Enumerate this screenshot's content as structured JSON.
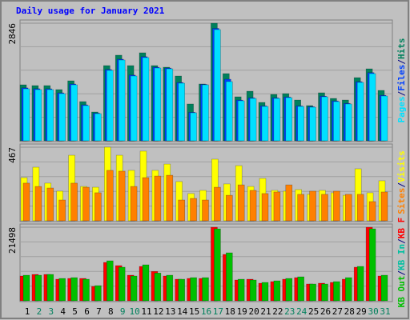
{
  "chart_data": [
    {
      "type": "bar",
      "title": "Daily usage for January 2021",
      "legend_separator": "/",
      "ylim": [
        0,
        2846
      ],
      "yticks": [
        2846
      ],
      "series": [
        {
          "name": "Hits",
          "color": "#00805c",
          "values": [
            1355,
            1336,
            1336,
            1239,
            1452,
            949,
            697,
            1820,
            2072,
            1820,
            2130,
            1820,
            1781,
            1568,
            891,
            1375,
            2846,
            1626,
            1065,
            1200,
            929,
            1123,
            1142,
            987,
            852,
            1162,
            1026,
            987,
            1529,
            1742,
            1220
          ]
        },
        {
          "name": "Files",
          "color": "#0040ff",
          "values": [
            1280,
            1260,
            1258,
            1160,
            1375,
            870,
            670,
            1725,
            1975,
            1590,
            2035,
            1780,
            1760,
            1410,
            690,
            1365,
            2720,
            1490,
            985,
            1040,
            845,
            1040,
            1060,
            845,
            825,
            1080,
            965,
            905,
            1430,
            1650,
            1100
          ]
        },
        {
          "name": "Pages",
          "color": "#00e0ff",
          "values": [
            1258,
            1239,
            1239,
            1142,
            1355,
            852,
            658,
            1704,
            1955,
            1568,
            2014,
            1762,
            1742,
            1394,
            678,
            1355,
            2691,
            1433,
            968,
            1026,
            832,
            1026,
            1045,
            832,
            813,
            1065,
            949,
            891,
            1413,
            1626,
            1084
          ]
        }
      ]
    },
    {
      "type": "bar",
      "ylim": [
        0,
        467
      ],
      "yticks": [
        467
      ],
      "series": [
        {
          "name": "Visits",
          "color": "#ffff00",
          "values": [
            274,
            340,
            239,
            188,
            416,
            218,
            213,
            467,
            416,
            320,
            442,
            320,
            360,
            249,
            173,
            193,
            391,
            234,
            350,
            218,
            269,
            193,
            188,
            198,
            168,
            193,
            178,
            162,
            330,
            178,
            254
          ]
        },
        {
          "name": "Sites",
          "color": "#ff8000",
          "values": [
            239,
            218,
            208,
            132,
            239,
            213,
            178,
            320,
            315,
            218,
            274,
            284,
            289,
            132,
            142,
            132,
            213,
            162,
            228,
            193,
            173,
            183,
            228,
            168,
            188,
            168,
            188,
            168,
            168,
            122,
            183
          ]
        }
      ]
    },
    {
      "type": "bar",
      "ylim": [
        0,
        21498
      ],
      "yticks": [
        21498
      ],
      "categories": [
        "1",
        "2",
        "3",
        "4",
        "5",
        "6",
        "7",
        "8",
        "9",
        "10",
        "11",
        "12",
        "13",
        "14",
        "15",
        "16",
        "17",
        "18",
        "19",
        "20",
        "21",
        "22",
        "23",
        "24",
        "25",
        "26",
        "27",
        "28",
        "29",
        "30",
        "31"
      ],
      "category_colors": [
        "#000000",
        "#00805c",
        "#00805c",
        "#000000",
        "#000000",
        "#000000",
        "#000000",
        "#000000",
        "#00805c",
        "#00805c",
        "#000000",
        "#000000",
        "#000000",
        "#000000",
        "#000000",
        "#00805c",
        "#00805c",
        "#000000",
        "#000000",
        "#000000",
        "#000000",
        "#000000",
        "#00805c",
        "#00805c",
        "#000000",
        "#000000",
        "#000000",
        "#000000",
        "#000000",
        "#00805c",
        "#00805c"
      ],
      "series": [
        {
          "name": "KB F",
          "color": "#ff0000",
          "values": [
            7244,
            7711,
            7711,
            6309,
            6542,
            6542,
            4206,
            11218,
            10283,
            7478,
            10049,
            8581,
            7244,
            6309,
            6542,
            6542,
            21498,
            13555,
            6076,
            6309,
            5141,
            5608,
            6309,
            6776,
            4908,
            5141,
            5375,
            6309,
            9815,
            21498,
            7244
          ]
        },
        {
          "name": "KB In",
          "color": "#00c0a0",
          "values": [
            0,
            0,
            0,
            0,
            0,
            0,
            0,
            0,
            0,
            0,
            0,
            0,
            0,
            0,
            0,
            0,
            0,
            0,
            0,
            0,
            0,
            0,
            0,
            0,
            0,
            0,
            0,
            0,
            0,
            0,
            0
          ]
        },
        {
          "name": "KB Out",
          "color": "#00c000",
          "values": [
            7478,
            7478,
            7711,
            6542,
            6776,
            6309,
            4440,
            11685,
            9815,
            7244,
            10516,
            8114,
            7478,
            6309,
            6776,
            6776,
            21030,
            14022,
            6309,
            6076,
            5374,
            5841,
            6542,
            7010,
            4908,
            4908,
            5608,
            6776,
            10049,
            21030,
            7478
          ]
        }
      ]
    }
  ]
}
